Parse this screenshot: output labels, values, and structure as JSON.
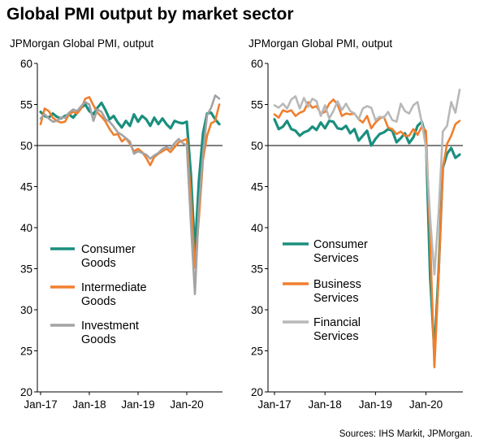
{
  "title": "Global PMI output by market sector",
  "source": "Sources: IHS Markit, JPMorgan.",
  "chart_data": [
    {
      "type": "line",
      "subtitle": "JPMorgan Global PMI, output",
      "ylim": [
        20,
        60
      ],
      "yticks": [
        "60",
        "55",
        "50",
        "45",
        "40",
        "35",
        "30",
        "25",
        "20"
      ],
      "xticks": [
        "Jan-17",
        "Jan-18",
        "Jan-19",
        "Jan-20"
      ],
      "x_start": "Jan-17",
      "x_end": "Sep-20",
      "reference_line": 50,
      "series": [
        {
          "name": "Consumer Goods",
          "name_lines": [
            "Consumer",
            "Goods"
          ],
          "color": "#1a8f7e",
          "values": [
            54.1,
            53.6,
            53.4,
            53.9,
            53.5,
            53.3,
            53.6,
            53.8,
            53.4,
            54.0,
            54.6,
            55.0,
            54.2,
            53.8,
            54.6,
            55.2,
            54.3,
            53.2,
            53.6,
            52.8,
            52.2,
            53.0,
            52.4,
            53.8,
            52.9,
            53.6,
            53.2,
            52.4,
            53.4,
            52.6,
            53.3,
            52.6,
            52.1,
            53.0,
            52.8,
            52.7,
            52.9,
            46.6,
            37.0,
            45.8,
            51.5,
            53.9,
            54.0,
            53.2,
            52.6
          ]
        },
        {
          "name": "Intermediate Goods",
          "name_lines": [
            "Intermediate",
            "Goods"
          ],
          "color": "#f07f2e",
          "values": [
            52.6,
            54.5,
            54.2,
            53.4,
            53.0,
            52.8,
            52.9,
            53.8,
            54.1,
            53.9,
            54.5,
            55.7,
            55.9,
            54.9,
            54.0,
            53.5,
            52.9,
            52.0,
            51.3,
            51.4,
            50.5,
            50.9,
            50.2,
            49.3,
            49.6,
            49.2,
            48.5,
            47.6,
            48.6,
            49.0,
            49.3,
            49.6,
            49.2,
            49.8,
            50.4,
            50.6,
            50.8,
            43.9,
            35.1,
            41.2,
            48.3,
            51.2,
            52.7,
            53.0,
            55.0
          ]
        },
        {
          "name": "Investment Goods",
          "name_lines": [
            "Investment",
            "Goods"
          ],
          "color": "#a3a3a3",
          "values": [
            53.3,
            53.8,
            53.3,
            52.9,
            53.0,
            53.4,
            53.4,
            54.0,
            54.4,
            54.2,
            54.8,
            55.3,
            55.0,
            53.0,
            54.4,
            54.1,
            53.2,
            52.9,
            52.3,
            51.6,
            51.3,
            50.9,
            50.5,
            49.0,
            49.3,
            49.1,
            48.9,
            48.4,
            48.8,
            49.1,
            49.6,
            49.8,
            49.6,
            50.3,
            50.8,
            50.3,
            50.0,
            40.6,
            31.9,
            42.5,
            49.0,
            53.7,
            54.6,
            56.1,
            55.7
          ]
        }
      ]
    },
    {
      "type": "line",
      "subtitle": "JPMorgan Global PMI, output",
      "ylim": [
        20,
        60
      ],
      "yticks": [
        "60",
        "55",
        "50",
        "45",
        "40",
        "35",
        "30",
        "25",
        "20"
      ],
      "xticks": [
        "Jan-17",
        "Jan-18",
        "Jan-19",
        "Jan-20"
      ],
      "x_start": "Jan-17",
      "x_end": "Sep-20",
      "reference_line": 50,
      "series": [
        {
          "name": "Consumer Services",
          "name_lines": [
            "Consumer",
            "Services"
          ],
          "color": "#1a8f7e",
          "values": [
            53.2,
            52.0,
            52.3,
            53.0,
            52.0,
            51.8,
            51.2,
            51.6,
            51.8,
            52.3,
            51.9,
            52.8,
            52.1,
            53.0,
            52.9,
            52.1,
            52.0,
            52.4,
            51.5,
            52.0,
            50.6,
            51.2,
            51.8,
            50.0,
            50.8,
            51.4,
            51.6,
            52.0,
            51.8,
            50.4,
            50.9,
            51.5,
            50.3,
            51.0,
            52.4,
            52.9,
            51.0,
            34.0,
            24.8,
            34.6,
            47.3,
            49.0,
            49.7,
            48.5,
            48.9
          ]
        },
        {
          "name": "Business Services",
          "name_lines": [
            "Business",
            "Services"
          ],
          "color": "#f07f2e",
          "values": [
            53.8,
            53.4,
            54.3,
            54.1,
            54.3,
            53.6,
            54.0,
            54.2,
            55.3,
            54.6,
            54.8,
            53.9,
            54.1,
            55.1,
            55.6,
            55.0,
            53.6,
            53.9,
            53.8,
            53.9,
            53.2,
            52.8,
            53.6,
            52.1,
            52.8,
            53.3,
            53.5,
            52.2,
            52.0,
            51.4,
            51.7,
            51.2,
            51.2,
            52.0,
            51.3,
            52.3,
            51.8,
            38.5,
            23.0,
            34.0,
            47.3,
            50.2,
            51.2,
            52.6,
            53.0
          ]
        },
        {
          "name": "Financial Services",
          "name_lines": [
            "Financial",
            "Services"
          ],
          "color": "#b8b8b8",
          "values": [
            54.9,
            54.6,
            55.1,
            54.5,
            55.6,
            56.0,
            54.5,
            55.8,
            54.7,
            55.7,
            55.4,
            53.6,
            54.9,
            53.3,
            54.2,
            55.4,
            54.3,
            55.1,
            54.2,
            53.9,
            53.2,
            54.5,
            54.8,
            54.6,
            53.1,
            53.5,
            53.4,
            54.1,
            53.1,
            52.9,
            55.1,
            54.2,
            53.9,
            54.9,
            55.3,
            52.8,
            49.8,
            41.2,
            34.3,
            41.8,
            51.7,
            52.4,
            55.3,
            54.0,
            56.8
          ]
        }
      ]
    }
  ]
}
